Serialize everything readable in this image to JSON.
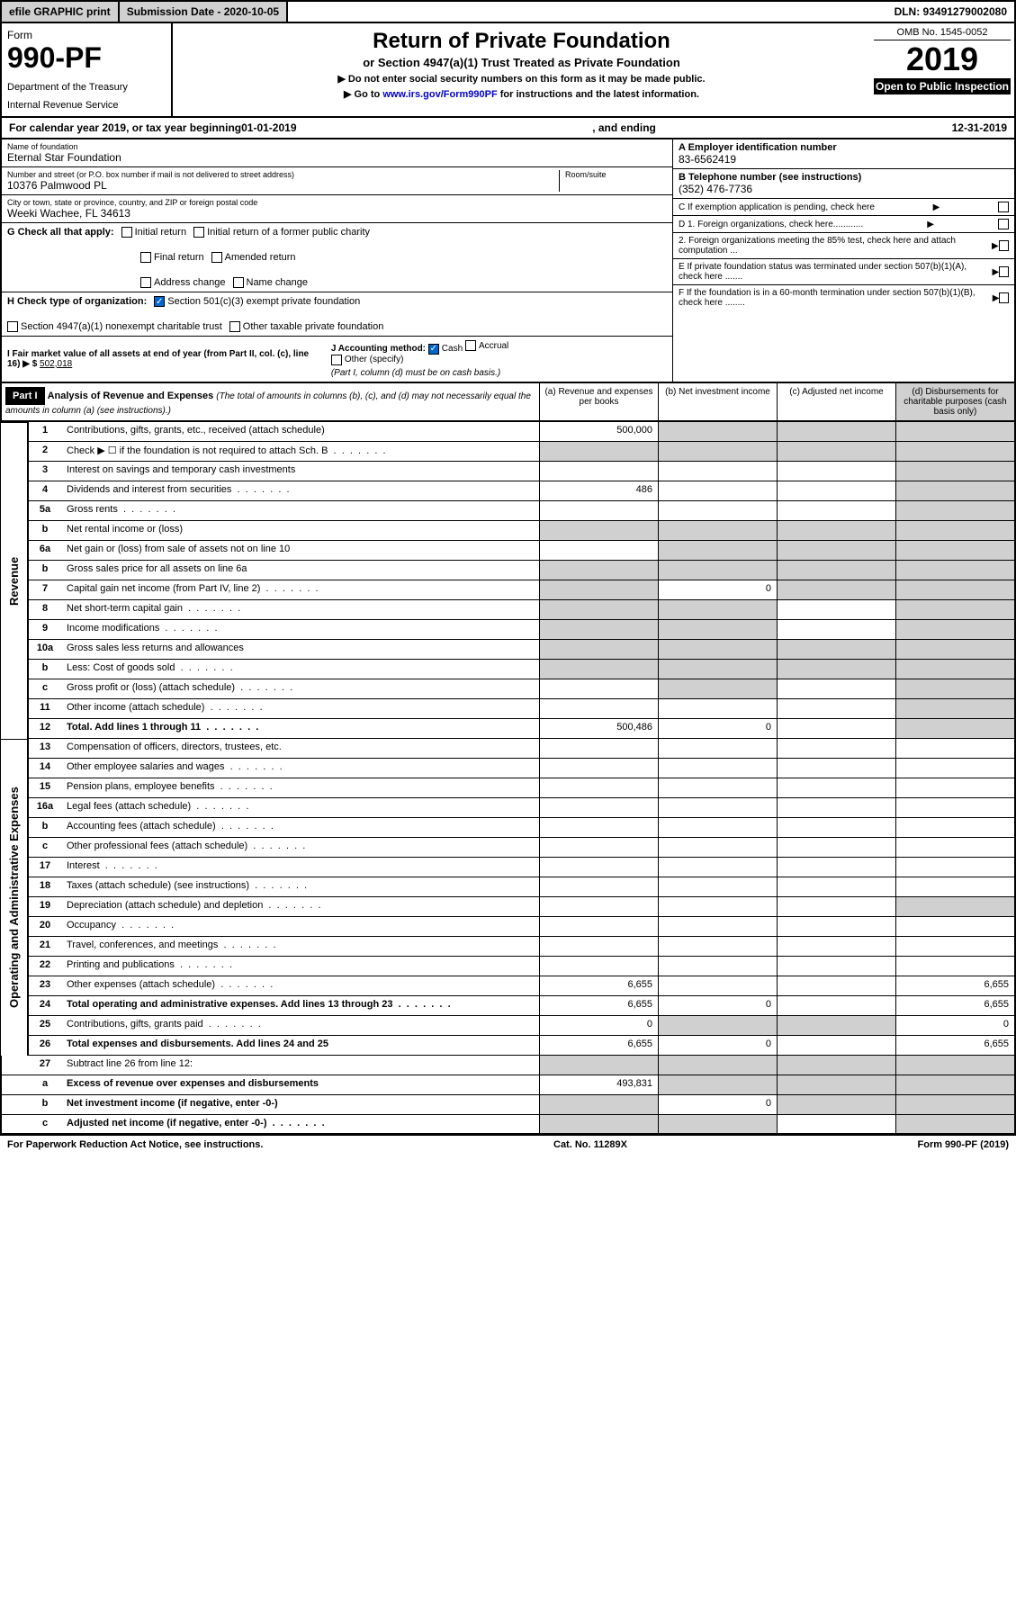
{
  "topbar": {
    "efile": "efile GRAPHIC print",
    "submission": "Submission Date - 2020-10-05",
    "dln": "DLN: 93491279002080"
  },
  "header": {
    "form_label": "Form",
    "form_number": "990-PF",
    "dept1": "Department of the Treasury",
    "dept2": "Internal Revenue Service",
    "title": "Return of Private Foundation",
    "subtitle": "or Section 4947(a)(1) Trust Treated as Private Foundation",
    "instruct1": "▶ Do not enter social security numbers on this form as it may be made public.",
    "instruct2_pre": "▶ Go to ",
    "instruct2_link": "www.irs.gov/Form990PF",
    "instruct2_post": " for instructions and the latest information.",
    "omb": "OMB No. 1545-0052",
    "year": "2019",
    "inspect": "Open to Public Inspection"
  },
  "calyear": {
    "pre": "For calendar year 2019, or tax year beginning ",
    "begin": "01-01-2019",
    "mid": ", and ending ",
    "end": "12-31-2019"
  },
  "entity": {
    "name_label": "Name of foundation",
    "name": "Eternal Star Foundation",
    "addr_label": "Number and street (or P.O. box number if mail is not delivered to street address)",
    "addr": "10376 Palmwood PL",
    "room_label": "Room/suite",
    "city_label": "City or town, state or province, country, and ZIP or foreign postal code",
    "city": "Weeki Wachee, FL  34613",
    "ein_label": "A Employer identification number",
    "ein": "83-6562419",
    "tel_label": "B Telephone number (see instructions)",
    "tel": "(352) 476-7736",
    "c_label": "C If exemption application is pending, check here",
    "d1": "D 1. Foreign organizations, check here............",
    "d2": "2. Foreign organizations meeting the 85% test, check here and attach computation ...",
    "e_label": "E If private foundation status was terminated under section 507(b)(1)(A), check here .......",
    "f_label": "F If the foundation is in a 60-month termination under section 507(b)(1)(B), check here ........"
  },
  "checks": {
    "g_label": "G Check all that apply:",
    "initial": "Initial return",
    "initial_former": "Initial return of a former public charity",
    "final": "Final return",
    "amended": "Amended return",
    "addr_change": "Address change",
    "name_change": "Name change",
    "h_label": "H Check type of organization:",
    "h_501c3": "Section 501(c)(3) exempt private foundation",
    "h_4947": "Section 4947(a)(1) nonexempt charitable trust",
    "h_other": "Other taxable private foundation",
    "i_label": "I Fair market value of all assets at end of year (from Part II, col. (c), line 16) ▶ $",
    "i_val": "502,018",
    "j_label": "J Accounting method:",
    "j_cash": "Cash",
    "j_accrual": "Accrual",
    "j_other": "Other (specify)",
    "j_note": "(Part I, column (d) must be on cash basis.)"
  },
  "part1": {
    "label": "Part I",
    "title": "Analysis of Revenue and Expenses",
    "title_note": "(The total of amounts in columns (b), (c), and (d) may not necessarily equal the amounts in column (a) (see instructions).)",
    "col_a": "(a) Revenue and expenses per books",
    "col_b": "(b) Net investment income",
    "col_c": "(c) Adjusted net income",
    "col_d": "(d) Disbursements for charitable purposes (cash basis only)"
  },
  "sections": {
    "revenue": "Revenue",
    "expenses": "Operating and Administrative Expenses"
  },
  "lines": [
    {
      "n": "1",
      "d": "Contributions, gifts, grants, etc., received (attach schedule)",
      "a": "500,000",
      "shade": [
        "b",
        "c",
        "d"
      ]
    },
    {
      "n": "2",
      "d": "Check ▶ ☐ if the foundation is not required to attach Sch. B",
      "dots": true,
      "shade": [
        "a",
        "b",
        "c",
        "d"
      ]
    },
    {
      "n": "3",
      "d": "Interest on savings and temporary cash investments",
      "shade": [
        "d"
      ]
    },
    {
      "n": "4",
      "d": "Dividends and interest from securities",
      "dots": true,
      "a": "486",
      "shade": [
        "d"
      ]
    },
    {
      "n": "5a",
      "d": "Gross rents",
      "dots": true,
      "shade": [
        "d"
      ]
    },
    {
      "n": "b",
      "d": "Net rental income or (loss)",
      "shade": [
        "a",
        "b",
        "c",
        "d"
      ]
    },
    {
      "n": "6a",
      "d": "Net gain or (loss) from sale of assets not on line 10",
      "shade": [
        "b",
        "c",
        "d"
      ]
    },
    {
      "n": "b",
      "d": "Gross sales price for all assets on line 6a",
      "shade": [
        "a",
        "b",
        "c",
        "d"
      ]
    },
    {
      "n": "7",
      "d": "Capital gain net income (from Part IV, line 2)",
      "dots": true,
      "b": "0",
      "shade": [
        "a",
        "c",
        "d"
      ]
    },
    {
      "n": "8",
      "d": "Net short-term capital gain",
      "dots": true,
      "shade": [
        "a",
        "b",
        "d"
      ]
    },
    {
      "n": "9",
      "d": "Income modifications",
      "dots": true,
      "shade": [
        "a",
        "b",
        "d"
      ]
    },
    {
      "n": "10a",
      "d": "Gross sales less returns and allowances",
      "shade": [
        "a",
        "b",
        "c",
        "d"
      ]
    },
    {
      "n": "b",
      "d": "Less: Cost of goods sold",
      "dots": true,
      "shade": [
        "a",
        "b",
        "c",
        "d"
      ]
    },
    {
      "n": "c",
      "d": "Gross profit or (loss) (attach schedule)",
      "dots": true,
      "shade": [
        "b",
        "d"
      ]
    },
    {
      "n": "11",
      "d": "Other income (attach schedule)",
      "dots": true,
      "shade": [
        "d"
      ]
    },
    {
      "n": "12",
      "d": "Total. Add lines 1 through 11",
      "dots": true,
      "bold": true,
      "a": "500,486",
      "b": "0",
      "shade": [
        "d"
      ]
    }
  ],
  "exp_lines": [
    {
      "n": "13",
      "d": "Compensation of officers, directors, trustees, etc."
    },
    {
      "n": "14",
      "d": "Other employee salaries and wages",
      "dots": true
    },
    {
      "n": "15",
      "d": "Pension plans, employee benefits",
      "dots": true
    },
    {
      "n": "16a",
      "d": "Legal fees (attach schedule)",
      "dots": true
    },
    {
      "n": "b",
      "d": "Accounting fees (attach schedule)",
      "dots": true
    },
    {
      "n": "c",
      "d": "Other professional fees (attach schedule)",
      "dots": true
    },
    {
      "n": "17",
      "d": "Interest",
      "dots": true
    },
    {
      "n": "18",
      "d": "Taxes (attach schedule) (see instructions)",
      "dots": true
    },
    {
      "n": "19",
      "d": "Depreciation (attach schedule) and depletion",
      "dots": true,
      "shade": [
        "d"
      ]
    },
    {
      "n": "20",
      "d": "Occupancy",
      "dots": true
    },
    {
      "n": "21",
      "d": "Travel, conferences, and meetings",
      "dots": true
    },
    {
      "n": "22",
      "d": "Printing and publications",
      "dots": true
    },
    {
      "n": "23",
      "d": "Other expenses (attach schedule)",
      "dots": true,
      "a": "6,655",
      "d_val": "6,655"
    },
    {
      "n": "24",
      "d": "Total operating and administrative expenses. Add lines 13 through 23",
      "dots": true,
      "bold": true,
      "a": "6,655",
      "b": "0",
      "d_val": "6,655"
    },
    {
      "n": "25",
      "d": "Contributions, gifts, grants paid",
      "dots": true,
      "a": "0",
      "shade": [
        "b",
        "c"
      ],
      "d_val": "0"
    },
    {
      "n": "26",
      "d": "Total expenses and disbursements. Add lines 24 and 25",
      "bold": true,
      "a": "6,655",
      "b": "0",
      "d_val": "6,655"
    }
  ],
  "bottom_lines": [
    {
      "n": "27",
      "d": "Subtract line 26 from line 12:",
      "shade": [
        "a",
        "b",
        "c",
        "d"
      ]
    },
    {
      "n": "a",
      "d": "Excess of revenue over expenses and disbursements",
      "bold": true,
      "a": "493,831",
      "shade": [
        "b",
        "c",
        "d"
      ]
    },
    {
      "n": "b",
      "d": "Net investment income (if negative, enter -0-)",
      "bold": true,
      "b": "0",
      "shade": [
        "a",
        "c",
        "d"
      ]
    },
    {
      "n": "c",
      "d": "Adjusted net income (if negative, enter -0-)",
      "bold": true,
      "dots": true,
      "shade": [
        "a",
        "b",
        "d"
      ]
    }
  ],
  "footer": {
    "left": "For Paperwork Reduction Act Notice, see instructions.",
    "mid": "Cat. No. 11289X",
    "right": "Form 990-PF (2019)"
  },
  "colors": {
    "shade": "#d0d0d0",
    "link": "#0000cc",
    "check": "#0066cc"
  }
}
